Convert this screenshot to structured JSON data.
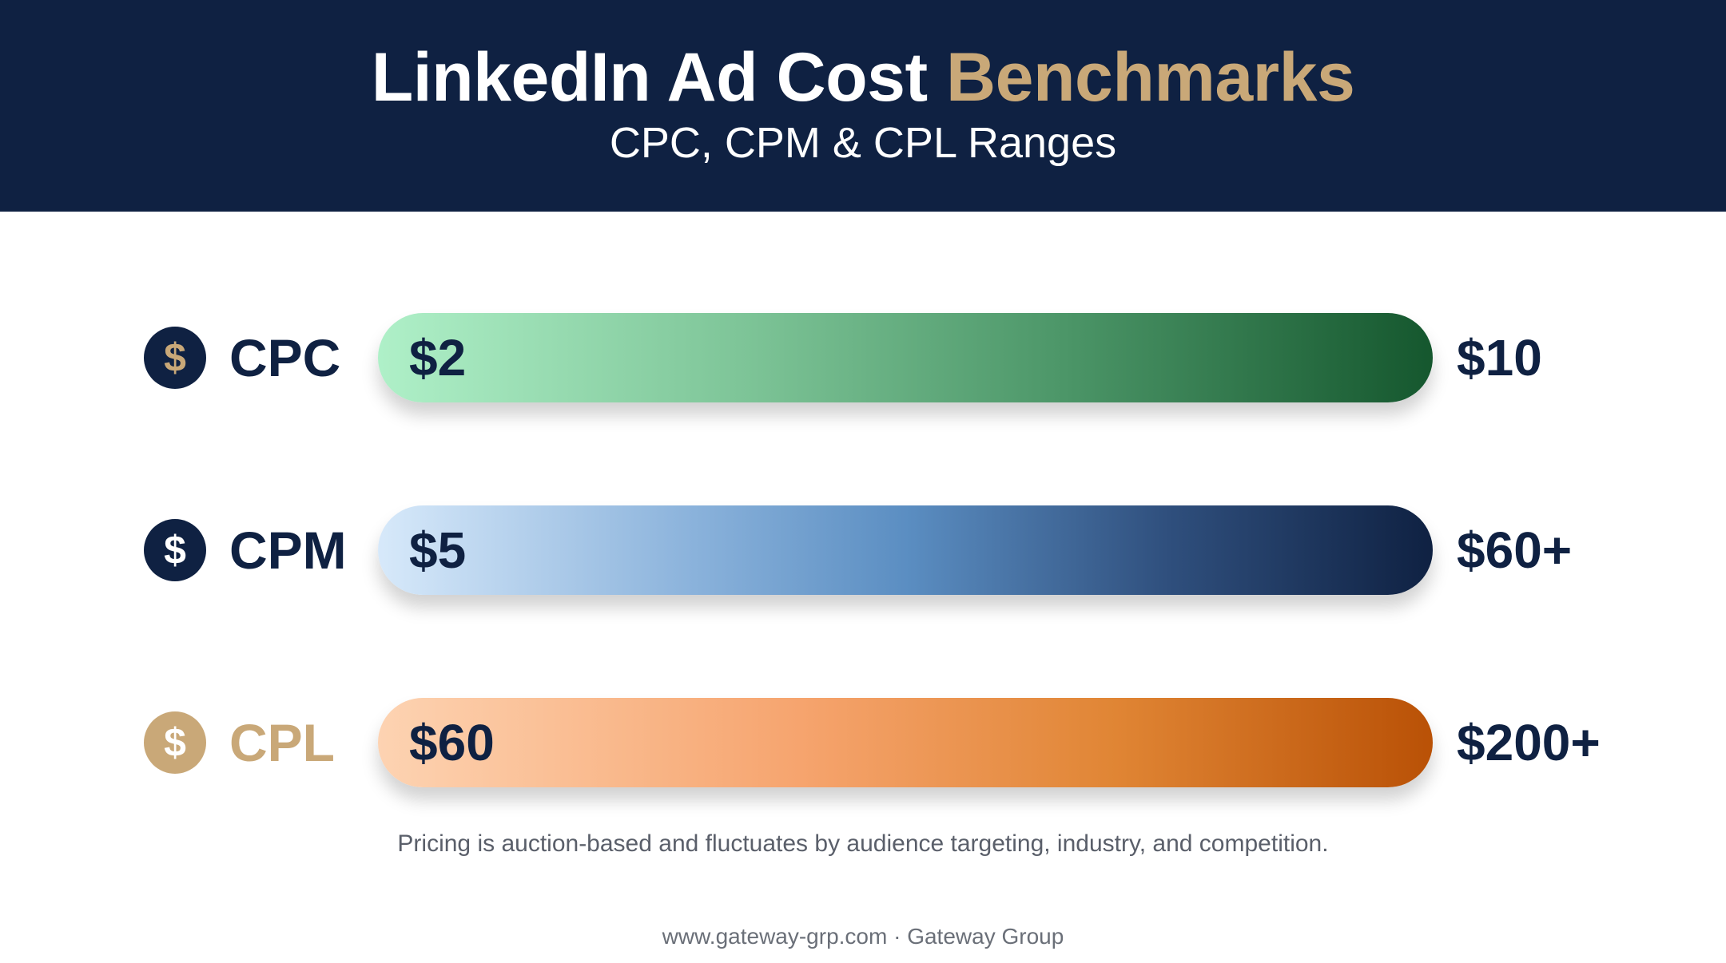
{
  "header": {
    "title_main": "LinkedIn Ad Cost ",
    "title_accent": "Benchmarks",
    "subtitle": "CPC, CPM & CPL Ranges"
  },
  "chart_data": {
    "type": "bar",
    "categories": [
      "CPC",
      "CPM",
      "CPL"
    ],
    "series": [
      {
        "name": "",
        "min_labels": [
          "$2",
          "$5",
          "$60"
        ],
        "max_labels": [
          "$10",
          "$60+",
          "$200+"
        ],
        "min": [
          2,
          5,
          60
        ],
        "max": [
          10,
          60,
          200
        ]
      }
    ]
  },
  "rows": [
    {
      "icon": "dollar-icon",
      "badge_glyph": "$",
      "label": "CPC",
      "min": "$2",
      "max": "$10",
      "colors": [
        "#aff0c8",
        "#15572e"
      ]
    },
    {
      "icon": "dollar-icon",
      "badge_glyph": "$",
      "label": "CPM",
      "min": "$5",
      "max": "$60+",
      "colors": [
        "#d7e9fa",
        "#0f2142"
      ]
    },
    {
      "icon": "dollar-icon",
      "badge_glyph": "$",
      "label": "CPL",
      "min": "$60",
      "max": "$200+",
      "colors": [
        "#fdd3b2",
        "#b95106"
      ]
    }
  ],
  "note": "Pricing is auction-based and fluctuates by audience targeting, industry, and competition.",
  "footer": "www.gateway-grp.com · Gateway Group",
  "colors": {
    "navy": "#0f2142",
    "gold": "#c9a878"
  }
}
